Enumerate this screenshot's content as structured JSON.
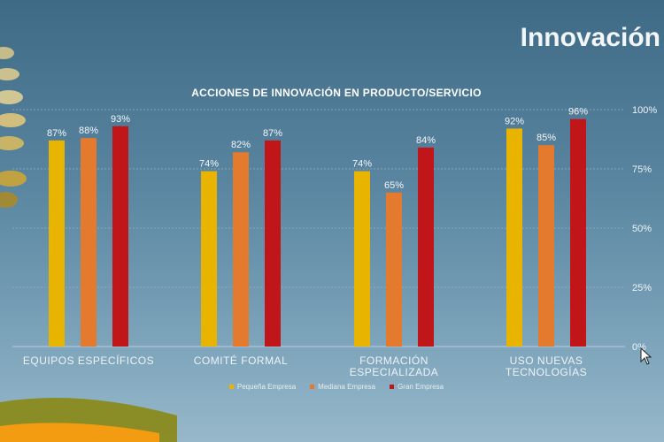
{
  "slide": {
    "title": "Innovación"
  },
  "chart_data": {
    "type": "bar",
    "title": "ACCIONES DE INNOVACIÓN EN PRODUCTO/SERVICIO",
    "categories": [
      [
        "EQUIPOS ESPECÍFICOS"
      ],
      [
        "COMITÉ FORMAL"
      ],
      [
        "FORMACIÓN",
        "ESPECIALIZADA"
      ],
      [
        "USO NUEVAS",
        "TECNOLOGÍAS"
      ]
    ],
    "series": [
      {
        "name": "Pequeña Empresa",
        "color": "#e9b400",
        "values": [
          87,
          74,
          74,
          92
        ]
      },
      {
        "name": "Mediana Empresa",
        "color": "#e47a2e",
        "values": [
          88,
          82,
          65,
          85
        ]
      },
      {
        "name": "Gran Empresa",
        "color": "#c0161a",
        "values": [
          93,
          87,
          84,
          96
        ]
      }
    ],
    "y_ticks": [
      "0%",
      "25%",
      "50%",
      "75%",
      "100%"
    ],
    "ylim": [
      0,
      100
    ],
    "value_suffix": "%",
    "grid": true,
    "legend_position": "bottom"
  }
}
